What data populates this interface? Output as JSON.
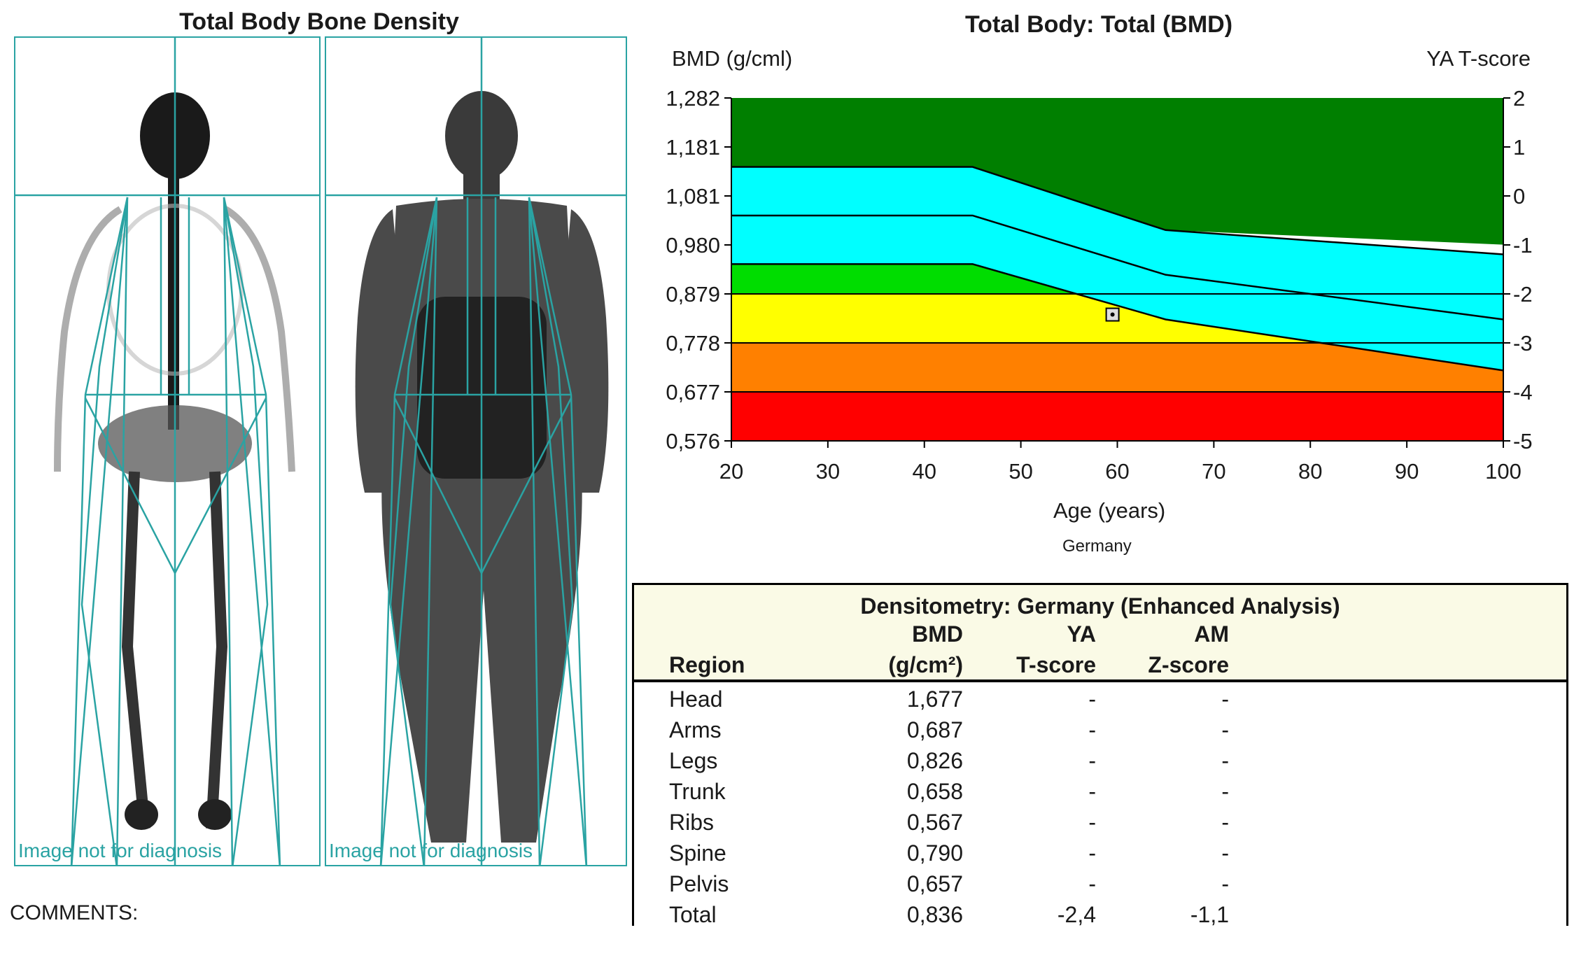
{
  "scan": {
    "title": "Total Body Bone Density",
    "left_note": "Image not for diagnosis",
    "right_note": "Image not for diagnosis",
    "comments_label": "COMMENTS:"
  },
  "chart_data": {
    "type": "area",
    "title": "Total Body: Total (BMD)",
    "ylabel": "BMD (g/cml)",
    "y2label": "YA T-score",
    "xlabel": "Age (years)",
    "footnote": "Germany",
    "x_ticks": [
      "20",
      "30",
      "40",
      "50",
      "60",
      "70",
      "80",
      "90",
      "100"
    ],
    "y_ticks": [
      "0,576",
      "0,677",
      "0,778",
      "0,879",
      "0,980",
      "1,081",
      "1,181",
      "1,282"
    ],
    "y2_ticks": [
      "-5",
      "-4",
      "-3",
      "-2",
      "-1",
      "0",
      "1",
      "2"
    ],
    "xlim": [
      20,
      100
    ],
    "ylim": [
      0.576,
      1.282
    ],
    "y2lim": [
      -5,
      2
    ],
    "bands": [
      {
        "name": "red",
        "color": "#ff0000",
        "lower": [
          [
            20,
            0.576
          ],
          [
            100,
            0.576
          ]
        ],
        "upper": [
          [
            20,
            0.677
          ],
          [
            100,
            0.677
          ]
        ]
      },
      {
        "name": "orange",
        "color": "#ff8000",
        "lower": [
          [
            20,
            0.677
          ],
          [
            100,
            0.677
          ]
        ],
        "upper": [
          [
            20,
            0.778
          ],
          [
            100,
            0.778
          ]
        ]
      },
      {
        "name": "yellow",
        "color": "#ffff00",
        "lower": [
          [
            20,
            0.778
          ],
          [
            100,
            0.778
          ]
        ],
        "upper": [
          [
            20,
            0.879
          ],
          [
            100,
            0.879
          ]
        ]
      },
      {
        "name": "green",
        "color": "#00dd00",
        "lower": [
          [
            20,
            0.879
          ],
          [
            45,
            0.879
          ],
          [
            100,
            0.879
          ]
        ],
        "upper": [
          [
            20,
            0.94
          ],
          [
            45,
            0.94
          ],
          [
            65,
            0.826
          ],
          [
            100,
            0.77
          ]
        ]
      },
      {
        "name": "cyan",
        "color": "#00ffff",
        "lower": [
          [
            20,
            0.94
          ],
          [
            45,
            0.94
          ],
          [
            65,
            0.826
          ],
          [
            100,
            0.721
          ]
        ],
        "upper": [
          [
            20,
            1.14
          ],
          [
            45,
            1.14
          ],
          [
            65,
            1.01
          ],
          [
            100,
            0.96
          ]
        ]
      },
      {
        "name": "dark-green",
        "color": "#007f00",
        "lower": [
          [
            20,
            1.14
          ],
          [
            45,
            1.14
          ],
          [
            65,
            1.01
          ],
          [
            100,
            0.98
          ]
        ],
        "upper": [
          [
            20,
            1.282
          ],
          [
            100,
            1.282
          ]
        ]
      }
    ],
    "reference_lines": [
      [
        [
          20,
          1.14
        ],
        [
          45,
          1.14
        ],
        [
          65,
          1.01
        ],
        [
          100,
          0.96
        ]
      ],
      [
        [
          20,
          1.04
        ],
        [
          45,
          1.04
        ],
        [
          65,
          0.918
        ],
        [
          100,
          0.826
        ]
      ],
      [
        [
          20,
          0.94
        ],
        [
          45,
          0.94
        ],
        [
          65,
          0.826
        ],
        [
          100,
          0.721
        ]
      ]
    ],
    "patient_point": {
      "age": 59.5,
      "bmd": 0.836
    }
  },
  "densitometry": {
    "title": "Densitometry: Germany (Enhanced Analysis)",
    "headers": {
      "region": "Region",
      "bmd_top": "BMD",
      "bmd_unit": "(g/cm²)",
      "ya_top": "YA",
      "ya_bottom": "T-score",
      "am_top": "AM",
      "am_bottom": "Z-score"
    },
    "rows": [
      {
        "region": "Head",
        "bmd": "1,677",
        "t": "-",
        "z": "-"
      },
      {
        "region": "Arms",
        "bmd": "0,687",
        "t": "-",
        "z": "-"
      },
      {
        "region": "Legs",
        "bmd": "0,826",
        "t": "-",
        "z": "-"
      },
      {
        "region": "Trunk",
        "bmd": "0,658",
        "t": "-",
        "z": "-"
      },
      {
        "region": "Ribs",
        "bmd": "0,567",
        "t": "-",
        "z": "-"
      },
      {
        "region": "Spine",
        "bmd": "0,790",
        "t": "-",
        "z": "-"
      },
      {
        "region": "Pelvis",
        "bmd": "0,657",
        "t": "-",
        "z": "-"
      },
      {
        "region": "Total",
        "bmd": "0,836",
        "t": "-2,4",
        "z": "-1,1"
      }
    ]
  }
}
